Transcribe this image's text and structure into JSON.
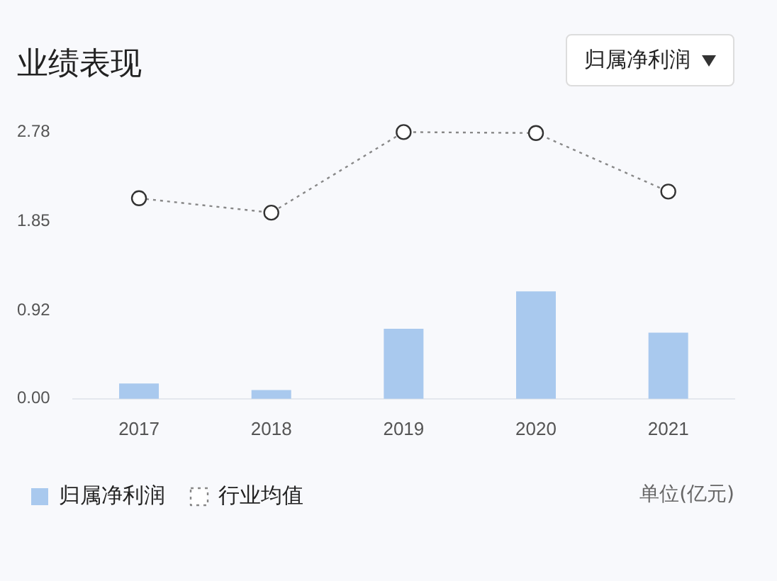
{
  "chart_data": {
    "type": "bar",
    "title": "业绩表现",
    "categories": [
      "2017",
      "2018",
      "2019",
      "2020",
      "2021"
    ],
    "series": [
      {
        "name": "归属净利润",
        "color": "#a9c9ee",
        "values": [
          0.16,
          0.09,
          0.73,
          1.12,
          0.69
        ]
      },
      {
        "name": "行业均值",
        "type": "line",
        "color": "#888888",
        "marker": "circle",
        "line_style": "dotted",
        "values": [
          2.09,
          1.94,
          2.78,
          2.77,
          2.16
        ]
      }
    ],
    "ylim": [
      0,
      2.78
    ],
    "yticks": [
      {
        "value": 0,
        "label": "0.00"
      },
      {
        "value": 0.92,
        "label": "0.92"
      },
      1.85,
      2.78
    ],
    "grid": false,
    "legend": "bottom left",
    "annotations": [
      "归属净利润",
      "单位(亿元)"
    ]
  }
}
